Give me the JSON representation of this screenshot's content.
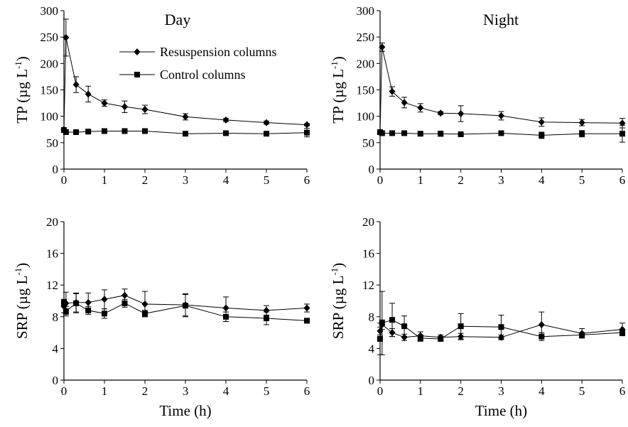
{
  "legend": {
    "resuspension": "Resuspension columns",
    "control": "Control columns"
  },
  "chart_data": [
    {
      "type": "line",
      "title": "Day",
      "xlabel": "",
      "ylabel": "TP (µg L-1)",
      "ylabel_base": "TP (µg L",
      "ylabel_sup": "-1",
      "ylabel_close": ")",
      "xlim": [
        0,
        6
      ],
      "ylim": [
        0,
        300
      ],
      "xticks": [
        0,
        1,
        2,
        3,
        4,
        5,
        6
      ],
      "yticks": [
        0,
        50,
        100,
        150,
        200,
        250,
        300
      ],
      "series": [
        {
          "name": "Resuspension columns",
          "marker": "diamond",
          "x": [
            0,
            0.05,
            0.3,
            0.6,
            1,
            1.5,
            2,
            3,
            4,
            5,
            6
          ],
          "y": [
            75,
            249,
            160,
            142,
            125,
            118,
            113,
            99,
            93,
            88,
            84
          ],
          "err": [
            3,
            35,
            15,
            15,
            6,
            11,
            8,
            6,
            3,
            3,
            2
          ]
        },
        {
          "name": "Control columns",
          "marker": "square",
          "x": [
            0,
            0.05,
            0.3,
            0.6,
            1,
            1.5,
            2,
            3,
            4,
            5,
            6
          ],
          "y": [
            74,
            70,
            70,
            71,
            72,
            72,
            72,
            67,
            68,
            67,
            69
          ],
          "err": [
            3,
            3,
            2,
            2,
            2,
            2,
            2,
            2,
            2,
            2,
            8
          ]
        }
      ]
    },
    {
      "type": "line",
      "title": "Night",
      "xlabel": "",
      "ylabel": "TP (µg L-1)",
      "ylabel_base": "TP (µg L",
      "ylabel_sup": "-1",
      "ylabel_close": ")",
      "xlim": [
        0,
        6
      ],
      "ylim": [
        0,
        300
      ],
      "xticks": [
        0,
        1,
        2,
        3,
        4,
        5,
        6
      ],
      "yticks": [
        0,
        50,
        100,
        150,
        200,
        250,
        300
      ],
      "series": [
        {
          "name": "Resuspension columns",
          "marker": "diamond",
          "x": [
            0,
            0.05,
            0.3,
            0.6,
            1,
            1.5,
            2,
            3,
            4,
            5,
            6
          ],
          "y": [
            70,
            231,
            147,
            126,
            116,
            106,
            105,
            101,
            89,
            88,
            87
          ],
          "err": [
            3,
            8,
            9,
            10,
            8,
            3,
            15,
            8,
            8,
            6,
            9
          ]
        },
        {
          "name": "Control columns",
          "marker": "square",
          "x": [
            0,
            0.05,
            0.3,
            0.6,
            1,
            1.5,
            2,
            3,
            4,
            5,
            6
          ],
          "y": [
            70,
            68,
            68,
            68,
            67,
            67,
            66,
            68,
            64,
            67,
            67
          ],
          "err": [
            3,
            3,
            2,
            2,
            3,
            5,
            2,
            3,
            6,
            6,
            16
          ]
        }
      ]
    },
    {
      "type": "line",
      "title": "",
      "xlabel": "Time (h)",
      "ylabel": "SRP (µg L-1)",
      "ylabel_base": "SRP (µg L",
      "ylabel_sup": "-1",
      "ylabel_close": ")",
      "xlim": [
        0,
        6
      ],
      "ylim": [
        0,
        20
      ],
      "xticks": [
        0,
        1,
        2,
        3,
        4,
        5,
        6
      ],
      "yticks": [
        0,
        4,
        8,
        12,
        16,
        20
      ],
      "series": [
        {
          "name": "Resuspension columns",
          "marker": "diamond",
          "x": [
            0,
            0.05,
            0.3,
            0.6,
            1,
            1.5,
            2,
            3,
            4,
            5,
            6
          ],
          "y": [
            9.3,
            9.7,
            9.8,
            9.8,
            10.2,
            10.7,
            9.6,
            9.5,
            9.1,
            8.8,
            9.1
          ],
          "err": [
            0.8,
            1.4,
            1.2,
            1.2,
            1.2,
            0.8,
            1.6,
            1.4,
            1.4,
            0.6,
            0.5
          ]
        },
        {
          "name": "Control columns",
          "marker": "square",
          "x": [
            0,
            0.05,
            0.3,
            0.6,
            1,
            1.5,
            2,
            3,
            4,
            5,
            6
          ],
          "y": [
            9.8,
            8.7,
            9.7,
            8.8,
            8.4,
            9.7,
            8.4,
            9.4,
            8.0,
            7.8,
            7.5
          ],
          "err": [
            0.4,
            0.6,
            1.2,
            0.5,
            0.6,
            0.5,
            0.4,
            1.4,
            0.6,
            0.8,
            0.3
          ]
        }
      ]
    },
    {
      "type": "line",
      "title": "",
      "xlabel": "Time (h)",
      "ylabel": "SRP (µg L-1)",
      "ylabel_base": "SRP (µg L",
      "ylabel_sup": "-1",
      "ylabel_close": ")",
      "xlim": [
        0,
        6
      ],
      "ylim": [
        0,
        20
      ],
      "xticks": [
        0,
        1,
        2,
        3,
        4,
        5,
        6
      ],
      "yticks": [
        0,
        4,
        8,
        12,
        16,
        20
      ],
      "series": [
        {
          "name": "Resuspension columns",
          "marker": "diamond",
          "x": [
            0,
            0.05,
            0.3,
            0.6,
            1,
            1.5,
            2,
            3,
            4,
            5,
            6
          ],
          "y": [
            6.2,
            7.0,
            6.0,
            5.4,
            5.6,
            5.4,
            5.5,
            5.4,
            7.0,
            5.9,
            6.4
          ],
          "err": [
            0.5,
            0.6,
            0.5,
            0.4,
            0.5,
            0.3,
            0.4,
            0.3,
            1.6,
            0.6,
            0.8
          ]
        },
        {
          "name": "Control columns",
          "marker": "square",
          "x": [
            0,
            0.05,
            0.3,
            0.6,
            1,
            1.5,
            2,
            3,
            4,
            5,
            6
          ],
          "y": [
            5.2,
            7.2,
            7.6,
            6.8,
            5.3,
            5.2,
            6.8,
            6.7,
            5.5,
            5.7,
            6.0
          ],
          "err": [
            2.0,
            4.0,
            2.1,
            1.3,
            0.4,
            0.3,
            1.6,
            1.5,
            0.5,
            0.3,
            0.4
          ]
        }
      ]
    }
  ]
}
